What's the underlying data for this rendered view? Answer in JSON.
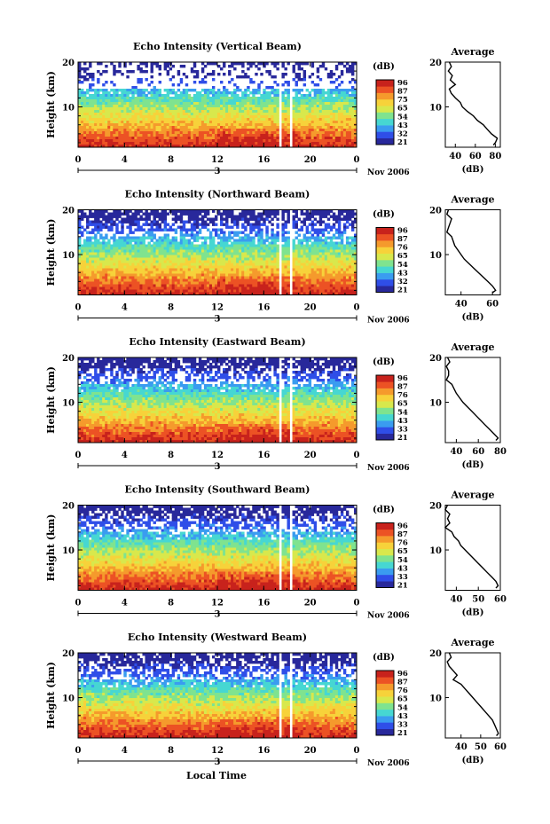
{
  "figure": {
    "xlabel": "Local Time",
    "date_label": "3",
    "month_label": "Nov 2006"
  },
  "colorbar": {
    "unit": "(dB)",
    "ticks": {
      "vertical": [
        "96",
        "87",
        "75",
        "65",
        "54",
        "43",
        "32",
        "21"
      ],
      "northward": [
        "96",
        "87",
        "76",
        "65",
        "54",
        "43",
        "32",
        "21"
      ],
      "eastward": [
        "96",
        "87",
        "76",
        "65",
        "54",
        "43",
        "33",
        "21"
      ],
      "southward": [
        "96",
        "87",
        "76",
        "65",
        "54",
        "43",
        "33",
        "21"
      ],
      "westward": [
        "96",
        "87",
        "76",
        "65",
        "54",
        "43",
        "33",
        "21"
      ]
    },
    "colors": [
      "#28289b",
      "#2f4ee8",
      "#3a9cf0",
      "#46d7d2",
      "#7fe38f",
      "#d8e84c",
      "#f7d23a",
      "#f59a2c",
      "#ec5224",
      "#c8221c"
    ]
  },
  "chart_data": [
    {
      "type": "heatmap",
      "title": "Echo Intensity (Vertical Beam)",
      "ylabel": "Height (km)",
      "x_ticks": [
        "0",
        "4",
        "8",
        "12",
        "16",
        "20",
        "0"
      ],
      "y_ticks": [
        "20",
        "10"
      ],
      "xlim": [
        0,
        24
      ],
      "ylim": [
        1,
        20
      ],
      "gaps_hours": [
        [
          17.3,
          17.6
        ],
        [
          18.2,
          18.5
        ]
      ],
      "profile": {
        "title": "Average",
        "xlabel": "(dB)",
        "x_ticks": [
          "40",
          "60",
          "80"
        ],
        "xlim": [
          30,
          85
        ],
        "y_ticks": [
          "20",
          "10"
        ],
        "height_km": [
          20,
          19,
          18,
          17,
          16,
          15,
          14,
          13,
          12,
          11,
          10,
          9,
          8,
          7,
          6,
          5,
          4,
          3,
          2,
          1.5
        ],
        "mean_db": [
          34,
          36,
          33,
          37,
          35,
          40,
          34,
          36,
          40,
          45,
          47,
          52,
          58,
          62,
          68,
          72,
          76,
          82,
          80,
          78
        ]
      }
    },
    {
      "type": "heatmap",
      "title": "Echo Intensity (Northward Beam)",
      "ylabel": "Height (km)",
      "x_ticks": [
        "0",
        "4",
        "8",
        "12",
        "16",
        "20",
        "0"
      ],
      "y_ticks": [
        "20",
        "10"
      ],
      "xlim": [
        0,
        24
      ],
      "ylim": [
        1,
        20
      ],
      "gaps_hours": [
        [
          17.3,
          17.6
        ],
        [
          18.2,
          18.5
        ]
      ],
      "profile": {
        "title": "Average",
        "xlabel": "(dB)",
        "x_ticks": [
          "40",
          "60"
        ],
        "xlim": [
          30,
          65
        ],
        "y_ticks": [
          "20",
          "10"
        ],
        "height_km": [
          20,
          19,
          18,
          17,
          16,
          15,
          14,
          13,
          12,
          11,
          10,
          9,
          8,
          7,
          6,
          5,
          4,
          3,
          2,
          1.5
        ],
        "mean_db": [
          32,
          31,
          34,
          33,
          32,
          31,
          34,
          35,
          36,
          38,
          40,
          42,
          45,
          48,
          51,
          54,
          57,
          60,
          62,
          60
        ]
      }
    },
    {
      "type": "heatmap",
      "title": "Echo Intensity (Eastward Beam)",
      "ylabel": "Height (km)",
      "x_ticks": [
        "0",
        "4",
        "8",
        "12",
        "16",
        "20",
        "0"
      ],
      "y_ticks": [
        "20",
        "10"
      ],
      "xlim": [
        0,
        24
      ],
      "ylim": [
        1,
        20
      ],
      "gaps_hours": [
        [
          17.3,
          17.6
        ],
        [
          18.2,
          18.5
        ]
      ],
      "profile": {
        "title": "Average",
        "xlabel": "(dB)",
        "x_ticks": [
          "40",
          "60",
          "80"
        ],
        "xlim": [
          30,
          80
        ],
        "y_ticks": [
          "20",
          "10"
        ],
        "height_km": [
          20,
          19,
          18,
          17,
          16,
          15,
          14,
          13,
          12,
          11,
          10,
          9,
          8,
          7,
          6,
          5,
          4,
          3,
          2,
          1.5
        ],
        "mean_db": [
          32,
          34,
          31,
          33,
          33,
          31,
          36,
          38,
          40,
          43,
          46,
          50,
          54,
          58,
          62,
          66,
          70,
          74,
          78,
          76
        ]
      }
    },
    {
      "type": "heatmap",
      "title": "Echo Intensity (Southward Beam)",
      "ylabel": "Height (km)",
      "x_ticks": [
        "0",
        "4",
        "8",
        "12",
        "16",
        "20",
        "0"
      ],
      "y_ticks": [
        "20",
        "10"
      ],
      "xlim": [
        0,
        24
      ],
      "ylim": [
        1,
        20
      ],
      "gaps_hours": [
        [
          17.3,
          17.6
        ],
        [
          18.2,
          18.5
        ]
      ],
      "profile": {
        "title": "Average",
        "xlabel": "(dB)",
        "x_ticks": [
          "40",
          "50",
          "60"
        ],
        "xlim": [
          35,
          60
        ],
        "y_ticks": [
          "20",
          "10"
        ],
        "height_km": [
          20,
          19,
          18,
          17,
          16,
          15,
          14,
          13,
          12,
          11,
          10,
          9,
          8,
          7,
          6,
          5,
          4,
          3,
          2,
          1.5
        ],
        "mean_db": [
          36,
          35,
          37,
          36,
          37,
          35,
          38,
          39,
          41,
          42,
          44,
          46,
          48,
          50,
          52,
          54,
          56,
          58,
          59,
          58
        ]
      }
    },
    {
      "type": "heatmap",
      "title": "Echo Intensity (Westward Beam)",
      "ylabel": "Height (km)",
      "x_ticks": [
        "0",
        "4",
        "8",
        "12",
        "16",
        "20",
        "0"
      ],
      "y_ticks": [
        "20",
        "10"
      ],
      "xlim": [
        0,
        24
      ],
      "ylim": [
        1,
        20
      ],
      "gaps_hours": [
        [
          17.3,
          17.6
        ],
        [
          18.2,
          18.5
        ]
      ],
      "profile": {
        "title": "Average",
        "xlabel": "(dB)",
        "x_ticks": [
          "40",
          "50",
          "60"
        ],
        "xlim": [
          32,
          60
        ],
        "y_ticks": [
          "20",
          "10"
        ],
        "height_km": [
          20,
          19,
          18,
          17,
          16,
          15,
          14,
          13,
          12,
          11,
          10,
          9,
          8,
          7,
          6,
          5,
          4,
          3,
          2,
          1.5
        ],
        "mean_db": [
          34,
          35,
          33,
          34,
          36,
          38,
          36,
          40,
          42,
          44,
          46,
          48,
          50,
          52,
          54,
          56,
          57,
          58,
          59,
          58
        ]
      }
    }
  ]
}
